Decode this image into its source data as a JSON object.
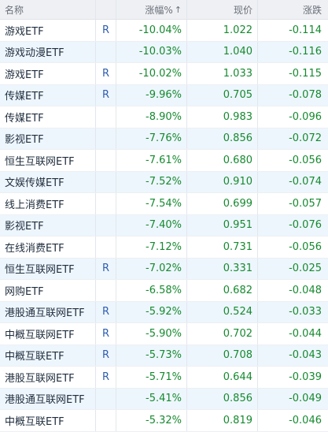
{
  "header": {
    "name": "名称",
    "change_pct": "涨幅%",
    "sort_arrow": "↑",
    "price": "现价",
    "change": "涨跌"
  },
  "rows": [
    {
      "name": "游戏ETF",
      "flag": "R",
      "pct": "-10.04%",
      "price": "1.022",
      "chg": "-0.114"
    },
    {
      "name": "游戏动漫ETF",
      "flag": "",
      "pct": "-10.03%",
      "price": "1.040",
      "chg": "-0.116"
    },
    {
      "name": "游戏ETF",
      "flag": "R",
      "pct": "-10.02%",
      "price": "1.033",
      "chg": "-0.115"
    },
    {
      "name": "传媒ETF",
      "flag": "R",
      "pct": "-9.96%",
      "price": "0.705",
      "chg": "-0.078"
    },
    {
      "name": "传媒ETF",
      "flag": "",
      "pct": "-8.90%",
      "price": "0.983",
      "chg": "-0.096"
    },
    {
      "name": "影视ETF",
      "flag": "",
      "pct": "-7.76%",
      "price": "0.856",
      "chg": "-0.072"
    },
    {
      "name": "恒生互联网ETF",
      "flag": "",
      "pct": "-7.61%",
      "price": "0.680",
      "chg": "-0.056"
    },
    {
      "name": "文娱传媒ETF",
      "flag": "",
      "pct": "-7.52%",
      "price": "0.910",
      "chg": "-0.074"
    },
    {
      "name": "线上消费ETF",
      "flag": "",
      "pct": "-7.54%",
      "price": "0.699",
      "chg": "-0.057"
    },
    {
      "name": "影视ETF",
      "flag": "",
      "pct": "-7.40%",
      "price": "0.951",
      "chg": "-0.076"
    },
    {
      "name": "在线消费ETF",
      "flag": "",
      "pct": "-7.12%",
      "price": "0.731",
      "chg": "-0.056"
    },
    {
      "name": "恒生互联网ETF",
      "flag": "R",
      "pct": "-7.02%",
      "price": "0.331",
      "chg": "-0.025"
    },
    {
      "name": "网购ETF",
      "flag": "",
      "pct": "-6.58%",
      "price": "0.682",
      "chg": "-0.048"
    },
    {
      "name": "港股通互联网ETF",
      "flag": "R",
      "pct": "-5.92%",
      "price": "0.524",
      "chg": "-0.033"
    },
    {
      "name": "中概互联网ETF",
      "flag": "R",
      "pct": "-5.90%",
      "price": "0.702",
      "chg": "-0.044"
    },
    {
      "name": "中概互联ETF",
      "flag": "R",
      "pct": "-5.73%",
      "price": "0.708",
      "chg": "-0.043"
    },
    {
      "name": "港股互联网ETF",
      "flag": "R",
      "pct": "-5.71%",
      "price": "0.644",
      "chg": "-0.039"
    },
    {
      "name": "港股通互联网ETF",
      "flag": "",
      "pct": "-5.41%",
      "price": "0.856",
      "chg": "-0.049"
    },
    {
      "name": "中概互联ETF",
      "flag": "",
      "pct": "-5.32%",
      "price": "0.819",
      "chg": "-0.046"
    }
  ]
}
